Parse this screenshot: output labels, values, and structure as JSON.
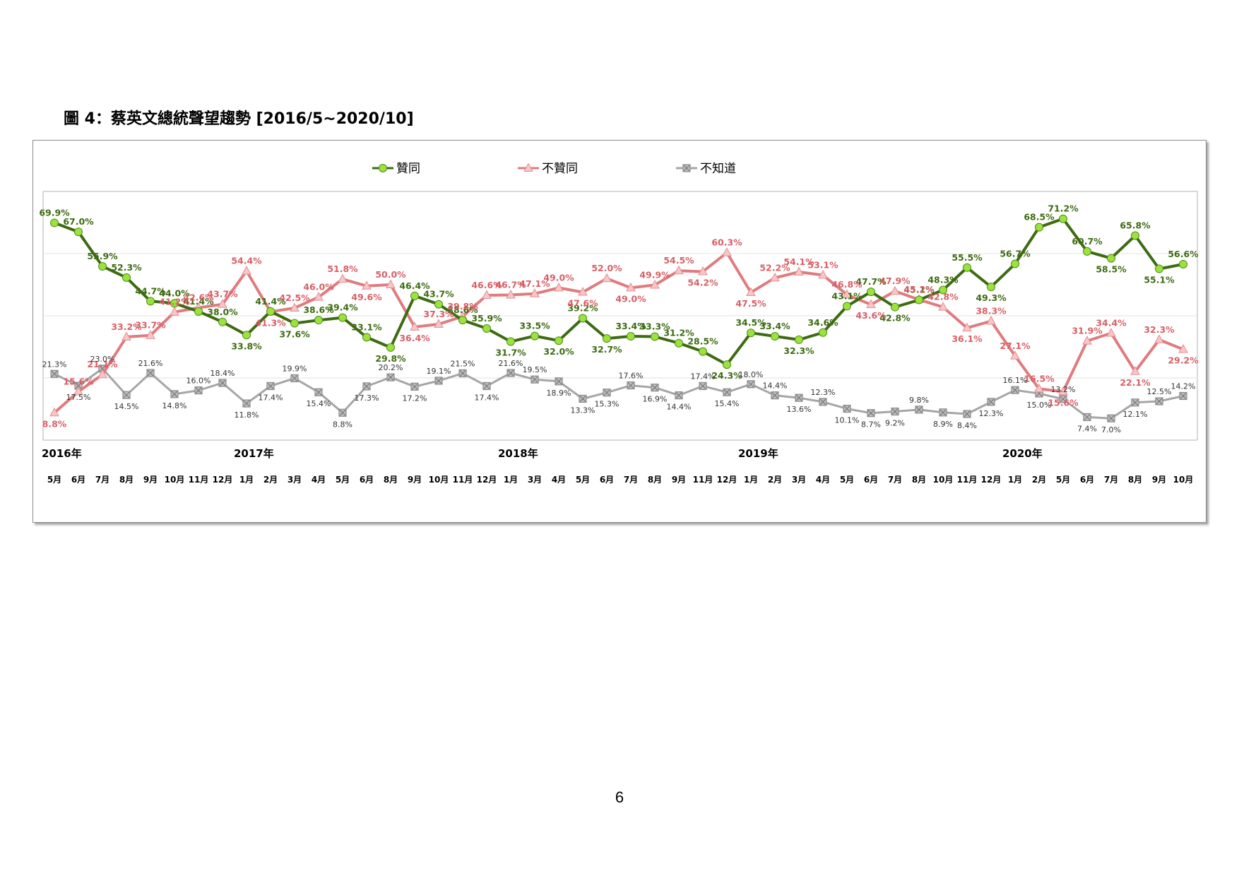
{
  "figure_title": "圖 4：蔡英文總統聲望趨勢  [2016/5~2020/10]",
  "page_number": "6",
  "chart_data": {
    "type": "line",
    "title": "",
    "xlabel": "",
    "ylabel": "",
    "ylim": [
      0,
      80
    ],
    "grid": true,
    "legend_position": "top-center",
    "x": [
      "5月",
      "6月",
      "7月",
      "8月",
      "9月",
      "10月",
      "11月",
      "12月",
      "1月",
      "2月",
      "3月",
      "4月",
      "5月",
      "6月",
      "8月",
      "9月",
      "10月",
      "11月",
      "12月",
      "1月",
      "3月",
      "4月",
      "5月",
      "6月",
      "7月",
      "8月",
      "9月",
      "11月",
      "12月",
      "1月",
      "2月",
      "3月",
      "4月",
      "5月",
      "6月",
      "7月",
      "8月",
      "10月",
      "11月",
      "12月",
      "1月",
      "2月",
      "5月",
      "6月",
      "7月",
      "8月",
      "9月",
      "10月"
    ],
    "years": [
      {
        "label": "2016年",
        "start_index": 0
      },
      {
        "label": "2017年",
        "start_index": 8
      },
      {
        "label": "2018年",
        "start_index": 19
      },
      {
        "label": "2019年",
        "start_index": 29
      },
      {
        "label": "2020年",
        "start_index": 40
      }
    ],
    "series": [
      {
        "name": "贊同",
        "color": "#3d6b12",
        "marker": "circle",
        "marker_color": "#9be33c",
        "label_color": "#3d6b12",
        "values": [
          69.9,
          67.0,
          55.9,
          52.3,
          44.7,
          44.0,
          41.4,
          38.0,
          33.8,
          41.4,
          37.6,
          38.6,
          39.4,
          33.1,
          29.8,
          46.4,
          43.7,
          38.6,
          35.9,
          31.7,
          33.5,
          32.0,
          39.2,
          32.7,
          33.4,
          33.3,
          31.2,
          28.5,
          24.3,
          34.5,
          33.4,
          32.3,
          34.6,
          43.1,
          47.7,
          42.8,
          45.1,
          48.3,
          55.5,
          49.3,
          56.7,
          68.5,
          71.2,
          60.7,
          58.5,
          65.8,
          55.1,
          56.6
        ],
        "labels": [
          "69.9%",
          "67.0%",
          "55.9%",
          "52.3%",
          "44.7%",
          "44.0%",
          "41.4%",
          "38.0%",
          "33.8%",
          "41.4%",
          "37.6%",
          "38.6%",
          "39.4%",
          "33.1%",
          "29.8%",
          "46.4%",
          "43.7%",
          "38.6%",
          "35.9%",
          "31.7%",
          "33.5%",
          "32.0%",
          "39.2%",
          "32.7%",
          "33.4%",
          "33.3%",
          "31.2%",
          "28.5%",
          "24.3%",
          "34.5%",
          "33.4%",
          "32.3%",
          "34.6%",
          "43.1%",
          "47.7%",
          "42.8%",
          "45.1%",
          "48.3%",
          "55.5%",
          "49.3%",
          "56.7%",
          "68.5%",
          "71.2%",
          "60.7%",
          "58.5%",
          "65.8%",
          "55.1%",
          "56.6%"
        ]
      },
      {
        "name": "不贊同",
        "color": "#e07b7f",
        "marker": "triangle",
        "marker_color": "#f7c6c6",
        "label_color": "#d95f66",
        "values": [
          8.8,
          15.6,
          21.1,
          33.2,
          33.7,
          41.2,
          42.6,
          43.7,
          54.4,
          41.3,
          42.5,
          46.0,
          51.8,
          49.6,
          50.0,
          36.4,
          37.3,
          39.8,
          46.6,
          46.7,
          47.1,
          49.0,
          47.6,
          52.0,
          49.0,
          49.9,
          54.5,
          54.2,
          60.3,
          47.5,
          52.2,
          54.1,
          53.1,
          46.8,
          43.6,
          47.9,
          45.2,
          42.8,
          36.1,
          38.3,
          27.1,
          16.5,
          15.6,
          31.9,
          34.4,
          22.1,
          32.3,
          29.2
        ],
        "labels": [
          "8.8%",
          "15.6%",
          "21.1%",
          "33.2%",
          "33.7%",
          "41.2%",
          "42.6%",
          "43.7%",
          "54.4%",
          "41.3%",
          "42.5%",
          "46.0%",
          "51.8%",
          "49.6%",
          "50.0%",
          "36.4%",
          "37.3%",
          "39.8%",
          "46.6%",
          "46.7%",
          "47.1%",
          "49.0%",
          "47.6%",
          "52.0%",
          "49.0%",
          "49.9%",
          "54.5%",
          "54.2%",
          "60.3%",
          "47.5%",
          "52.2%",
          "54.1%",
          "53.1%",
          "46.8%",
          "43.6%",
          "47.9%",
          "45.2%",
          "42.8%",
          "36.1%",
          "38.3%",
          "27.1%",
          "16.5%",
          "15.6%",
          "31.9%",
          "34.4%",
          "22.1%",
          "32.3%",
          "29.2%"
        ]
      },
      {
        "name": "不知道",
        "color": "#a6a6a6",
        "marker": "square-x",
        "marker_color": "#8c8c8c",
        "label_color": "#333333",
        "values": [
          21.3,
          17.5,
          23.0,
          14.5,
          21.6,
          14.8,
          16.0,
          18.4,
          11.8,
          17.4,
          19.9,
          15.4,
          8.8,
          17.3,
          20.2,
          17.2,
          19.1,
          21.5,
          17.4,
          21.6,
          19.5,
          18.9,
          13.3,
          15.3,
          17.6,
          16.9,
          14.4,
          17.4,
          15.4,
          18.0,
          14.4,
          13.6,
          12.3,
          10.1,
          8.7,
          9.2,
          9.8,
          8.9,
          8.4,
          12.3,
          16.1,
          15.0,
          13.2,
          7.4,
          7.0,
          12.1,
          12.5,
          14.2
        ],
        "labels": [
          "21.3%",
          "17.5%",
          "23.0%",
          "14.5%",
          "21.6%",
          "14.8%",
          "16.0%",
          "18.4%",
          "11.8%",
          "17.4%",
          "19.9%",
          "15.4%",
          "8.8%",
          "17.3%",
          "20.2%",
          "17.2%",
          "19.1%",
          "21.5%",
          "17.4%",
          "21.6%",
          "19.5%",
          "18.9%",
          "13.3%",
          "15.3%",
          "17.6%",
          "16.9%",
          "14.4%",
          "17.4%",
          "15.4%",
          "18.0%",
          "14.4%",
          "13.6%",
          "12.3%",
          "10.1%",
          "8.7%",
          "9.2%",
          "9.8%",
          "8.9%",
          "8.4%",
          "12.3%",
          "16.1%",
          "15.0%",
          "13.2%",
          "7.4%",
          "7.0%",
          "12.1%",
          "12.5%",
          "14.2%"
        ]
      }
    ]
  }
}
